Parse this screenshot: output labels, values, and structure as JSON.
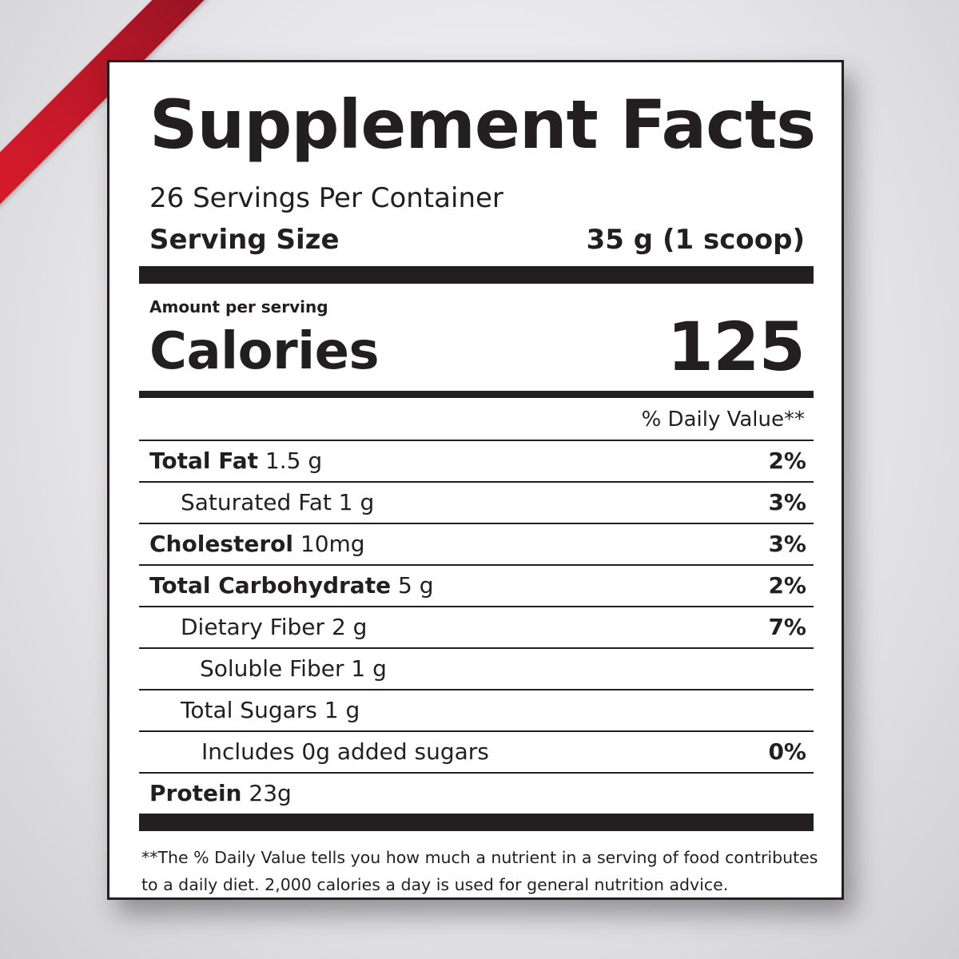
{
  "label": {
    "title": "Supplement Facts",
    "servings_per_container": "26 Servings Per Container",
    "serving_size_label": "Serving Size",
    "serving_size_value": "35 g (1 scoop)",
    "amount_per_serving": "Amount per serving",
    "calories_label": "Calories",
    "calories_value": "125",
    "dv_header": "% Daily Value**",
    "nutrients": [
      {
        "name": "Total Fat",
        "amount": " 1.5 g",
        "dv": "2%"
      },
      {
        "name": "",
        "amount": "Saturated Fat 1 g",
        "dv": "3%"
      },
      {
        "name": "Cholesterol",
        "amount": " 10mg",
        "dv": "3%"
      },
      {
        "name": "Total Carbohydrate",
        "amount": " 5 g",
        "dv": "2%"
      },
      {
        "name": "",
        "amount": "Dietary Fiber 2 g",
        "dv": "7%"
      },
      {
        "name": "",
        "amount": "Soluble Fiber 1 g",
        "dv": ""
      },
      {
        "name": "",
        "amount": "Total Sugars 1 g",
        "dv": ""
      },
      {
        "name": "",
        "amount": "Includes 0g added sugars",
        "dv": "0%"
      },
      {
        "name": "Protein",
        "amount": " 23g",
        "dv": ""
      }
    ],
    "footnote": "**The % Daily Value tells you how much a nutrient in a serving of food contributes to a daily diet. 2,000 calories a day is used for general nutrition advice."
  },
  "colors": {
    "ink": "#231f20",
    "ribbon": "#d81b2b",
    "background": "#e4e4e6"
  }
}
